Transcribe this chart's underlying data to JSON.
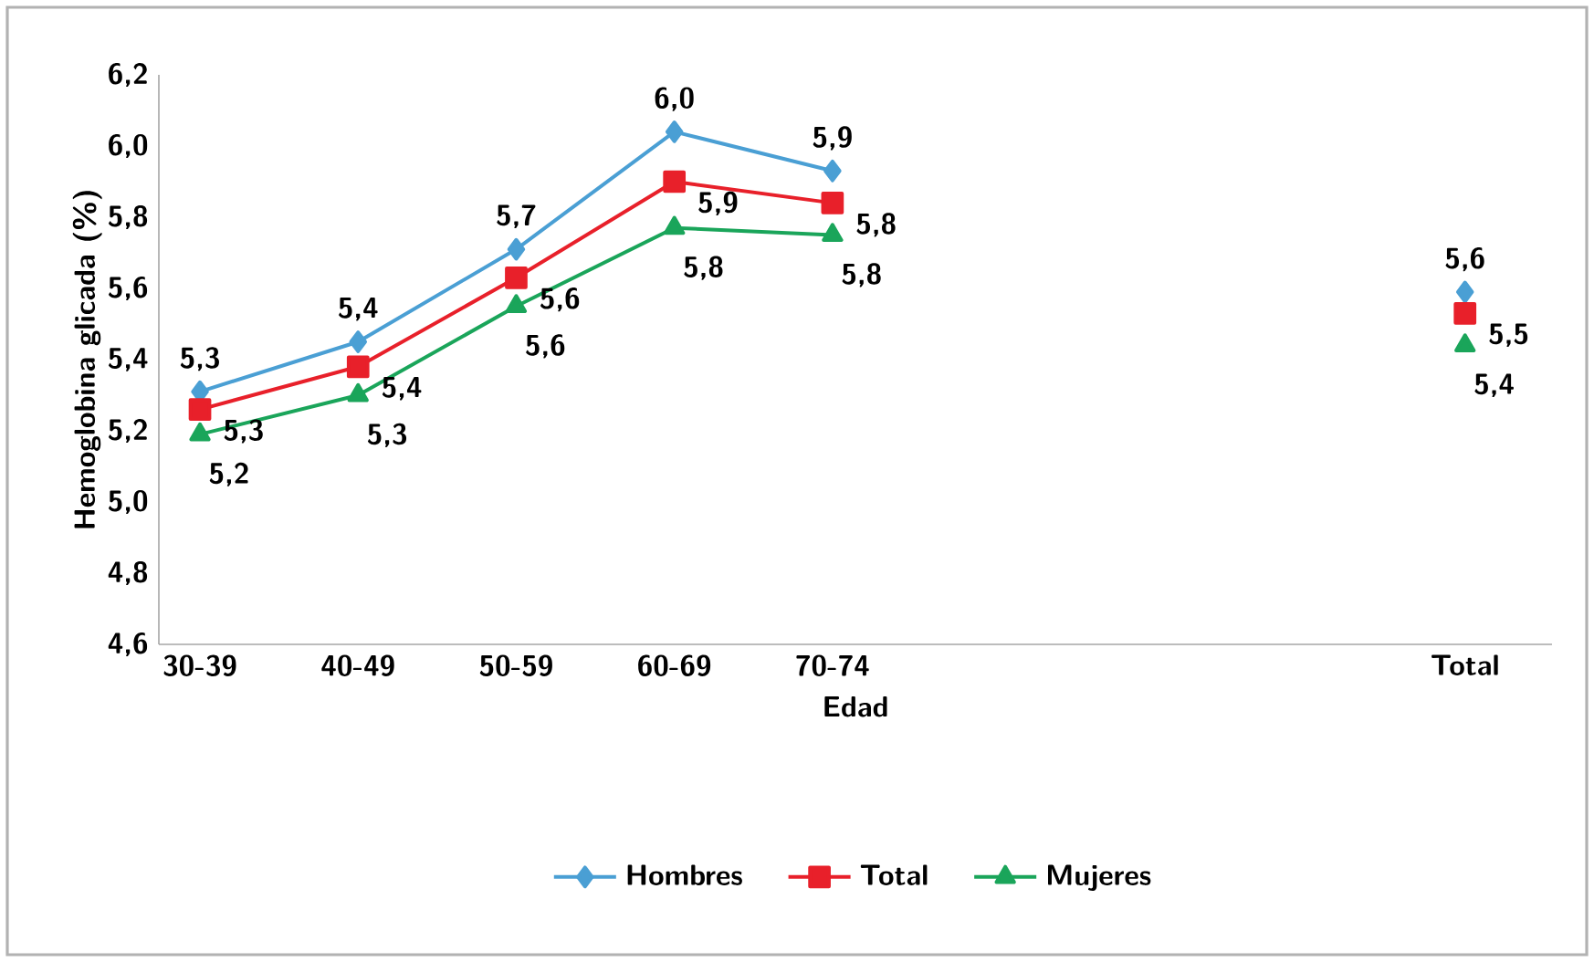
{
  "chart_data": {
    "type": "line",
    "xlabel": "Edad",
    "ylabel": "Hemoglobina glicada (%)",
    "categories": [
      "30-39",
      "40-49",
      "50-59",
      "60-69",
      "70-74",
      null,
      null,
      null,
      "Total"
    ],
    "ylim": [
      4.6,
      6.2
    ],
    "yticks": [
      {
        "value": 4.6,
        "label": "4,6"
      },
      {
        "value": 4.8,
        "label": "4,8"
      },
      {
        "value": 5.0,
        "label": "5,0"
      },
      {
        "value": 5.2,
        "label": "5,2"
      },
      {
        "value": 5.4,
        "label": "5,4"
      },
      {
        "value": 5.6,
        "label": "5,6"
      },
      {
        "value": 5.8,
        "label": "5,8"
      },
      {
        "value": 6.0,
        "label": "6,0"
      },
      {
        "value": 6.2,
        "label": "6,2"
      }
    ],
    "series": [
      {
        "name": "Hombres",
        "color": "#4a9fd4",
        "marker": "diamond",
        "values": [
          5.31,
          5.45,
          5.71,
          6.04,
          5.93,
          null,
          null,
          null,
          5.59
        ],
        "value_labels": [
          "5,3",
          "5,4",
          "5,7",
          "6,0",
          "5,9",
          null,
          null,
          null,
          "5,6"
        ]
      },
      {
        "name": "Total",
        "color": "#e8202a",
        "marker": "square",
        "values": [
          5.26,
          5.38,
          5.63,
          5.9,
          5.84,
          null,
          null,
          null,
          5.53
        ],
        "value_labels": [
          "5,3",
          "5,4",
          "5,6",
          "5,9",
          "5,8",
          null,
          null,
          null,
          "5,5"
        ]
      },
      {
        "name": "Mujeres",
        "color": "#1aa55a",
        "marker": "triangle",
        "values": [
          5.19,
          5.3,
          5.55,
          5.77,
          5.75,
          null,
          null,
          null,
          5.44
        ],
        "value_labels": [
          "5,2",
          "5,3",
          "5,6",
          "5,8",
          "5,8",
          null,
          null,
          null,
          "5,4"
        ]
      }
    ],
    "grid": false,
    "legend": "bottom"
  }
}
